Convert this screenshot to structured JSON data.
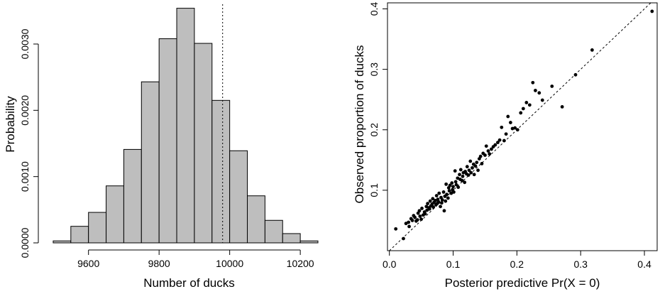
{
  "chart_data": [
    {
      "type": "bar",
      "subtype": "histogram",
      "xlabel": "Number of ducks",
      "ylabel": "Probability",
      "xlim": [
        9480,
        10250
      ],
      "ylim": [
        0,
        0.0036
      ],
      "xticks": [
        9600,
        9800,
        10000,
        10200
      ],
      "xtick_labels": [
        "9600",
        "9800",
        "10000",
        "10200"
      ],
      "yticks": [
        0.0,
        0.001,
        0.002,
        0.003
      ],
      "ytick_labels": [
        "0.0000",
        "0.0010",
        "0.0020",
        "0.0030"
      ],
      "bins": [
        {
          "x0": 9500,
          "x1": 9550,
          "value": 3e-05
        },
        {
          "x0": 9550,
          "x1": 9600,
          "value": 0.00025
        },
        {
          "x0": 9600,
          "x1": 9650,
          "value": 0.00046
        },
        {
          "x0": 9650,
          "x1": 9700,
          "value": 0.00086
        },
        {
          "x0": 9700,
          "x1": 9750,
          "value": 0.00141
        },
        {
          "x0": 9750,
          "x1": 9800,
          "value": 0.00243
        },
        {
          "x0": 9800,
          "x1": 9850,
          "value": 0.00308
        },
        {
          "x0": 9850,
          "x1": 9900,
          "value": 0.00354
        },
        {
          "x0": 9900,
          "x1": 9950,
          "value": 0.00301
        },
        {
          "x0": 9950,
          "x1": 10000,
          "value": 0.00215
        },
        {
          "x0": 10000,
          "x1": 10050,
          "value": 0.00139
        },
        {
          "x0": 10050,
          "x1": 10100,
          "value": 0.00071
        },
        {
          "x0": 10100,
          "x1": 10150,
          "value": 0.00034
        },
        {
          "x0": 10150,
          "x1": 10200,
          "value": 0.00014
        },
        {
          "x0": 10200,
          "x1": 10250,
          "value": 3e-05
        }
      ],
      "reference_line": {
        "x": 9980,
        "style": "dotted"
      },
      "bar_color": "#bebebe",
      "edge_color": "#000000"
    },
    {
      "type": "scatter",
      "xlabel": "Posterior predictive Pr(X = 0)",
      "ylabel": "Observed proportion of ducks",
      "xlim": [
        -0.003,
        0.42
      ],
      "ylim": [
        0.0,
        0.41
      ],
      "xticks": [
        0.0,
        0.1,
        0.2,
        0.3,
        0.4
      ],
      "xtick_labels": [
        "0.0",
        "0.1",
        "0.2",
        "0.3",
        "0.4"
      ],
      "yticks": [
        0.1,
        0.2,
        0.3,
        0.4
      ],
      "ytick_labels": [
        "0.1",
        "0.2",
        "0.3",
        "0.4"
      ],
      "reference_line": {
        "slope": 1,
        "intercept": 0,
        "style": "dashed"
      },
      "point_color": "#000000",
      "points": [
        [
          0.01,
          0.036
        ],
        [
          0.022,
          0.02
        ],
        [
          0.026,
          0.045
        ],
        [
          0.03,
          0.047
        ],
        [
          0.031,
          0.04
        ],
        [
          0.034,
          0.053
        ],
        [
          0.036,
          0.05
        ],
        [
          0.038,
          0.058
        ],
        [
          0.04,
          0.055
        ],
        [
          0.042,
          0.049
        ],
        [
          0.044,
          0.051
        ],
        [
          0.045,
          0.062
        ],
        [
          0.047,
          0.066
        ],
        [
          0.048,
          0.057
        ],
        [
          0.05,
          0.052
        ],
        [
          0.051,
          0.07
        ],
        [
          0.053,
          0.059
        ],
        [
          0.055,
          0.064
        ],
        [
          0.056,
          0.061
        ],
        [
          0.058,
          0.073
        ],
        [
          0.059,
          0.067
        ],
        [
          0.06,
          0.078
        ],
        [
          0.062,
          0.071
        ],
        [
          0.063,
          0.069
        ],
        [
          0.064,
          0.082
        ],
        [
          0.065,
          0.074
        ],
        [
          0.067,
          0.077
        ],
        [
          0.068,
          0.086
        ],
        [
          0.069,
          0.072
        ],
        [
          0.07,
          0.08
        ],
        [
          0.072,
          0.083
        ],
        [
          0.073,
          0.076
        ],
        [
          0.074,
          0.091
        ],
        [
          0.075,
          0.078
        ],
        [
          0.076,
          0.085
        ],
        [
          0.077,
          0.081
        ],
        [
          0.078,
          0.095
        ],
        [
          0.08,
          0.073
        ],
        [
          0.081,
          0.088
        ],
        [
          0.082,
          0.079
        ],
        [
          0.083,
          0.084
        ],
        [
          0.085,
          0.097
        ],
        [
          0.086,
          0.066
        ],
        [
          0.087,
          0.09
        ],
        [
          0.088,
          0.082
        ],
        [
          0.089,
          0.11
        ],
        [
          0.09,
          0.093
        ],
        [
          0.092,
          0.087
        ],
        [
          0.093,
          0.104
        ],
        [
          0.094,
          0.099
        ],
        [
          0.095,
          0.108
        ],
        [
          0.097,
          0.095
        ],
        [
          0.098,
          0.112
        ],
        [
          0.099,
          0.101
        ],
        [
          0.1,
          0.106
        ],
        [
          0.101,
          0.097
        ],
        [
          0.103,
          0.132
        ],
        [
          0.104,
          0.114
        ],
        [
          0.105,
          0.109
        ],
        [
          0.107,
          0.12
        ],
        [
          0.108,
          0.105
        ],
        [
          0.11,
          0.126
        ],
        [
          0.111,
          0.118
        ],
        [
          0.112,
          0.134
        ],
        [
          0.114,
          0.116
        ],
        [
          0.115,
          0.123
        ],
        [
          0.116,
          0.129
        ],
        [
          0.118,
          0.113
        ],
        [
          0.119,
          0.131
        ],
        [
          0.121,
          0.127
        ],
        [
          0.122,
          0.139
        ],
        [
          0.124,
          0.125
        ],
        [
          0.125,
          0.133
        ],
        [
          0.127,
          0.148
        ],
        [
          0.128,
          0.129
        ],
        [
          0.13,
          0.137
        ],
        [
          0.132,
          0.143
        ],
        [
          0.133,
          0.126
        ],
        [
          0.135,
          0.14
        ],
        [
          0.137,
          0.146
        ],
        [
          0.139,
          0.133
        ],
        [
          0.141,
          0.152
        ],
        [
          0.143,
          0.156
        ],
        [
          0.145,
          0.144
        ],
        [
          0.147,
          0.161
        ],
        [
          0.15,
          0.158
        ],
        [
          0.152,
          0.173
        ],
        [
          0.155,
          0.165
        ],
        [
          0.157,
          0.16
        ],
        [
          0.16,
          0.168
        ],
        [
          0.163,
          0.172
        ],
        [
          0.166,
          0.175
        ],
        [
          0.17,
          0.179
        ],
        [
          0.173,
          0.183
        ],
        [
          0.176,
          0.204
        ],
        [
          0.18,
          0.182
        ],
        [
          0.183,
          0.193
        ],
        [
          0.186,
          0.222
        ],
        [
          0.19,
          0.212
        ],
        [
          0.193,
          0.202
        ],
        [
          0.197,
          0.203
        ],
        [
          0.201,
          0.2
        ],
        [
          0.206,
          0.228
        ],
        [
          0.21,
          0.235
        ],
        [
          0.215,
          0.245
        ],
        [
          0.22,
          0.241
        ],
        [
          0.225,
          0.278
        ],
        [
          0.229,
          0.265
        ],
        [
          0.235,
          0.261
        ],
        [
          0.24,
          0.249
        ],
        [
          0.255,
          0.272
        ],
        [
          0.271,
          0.238
        ],
        [
          0.292,
          0.291
        ],
        [
          0.318,
          0.332
        ],
        [
          0.412,
          0.396
        ]
      ]
    }
  ]
}
